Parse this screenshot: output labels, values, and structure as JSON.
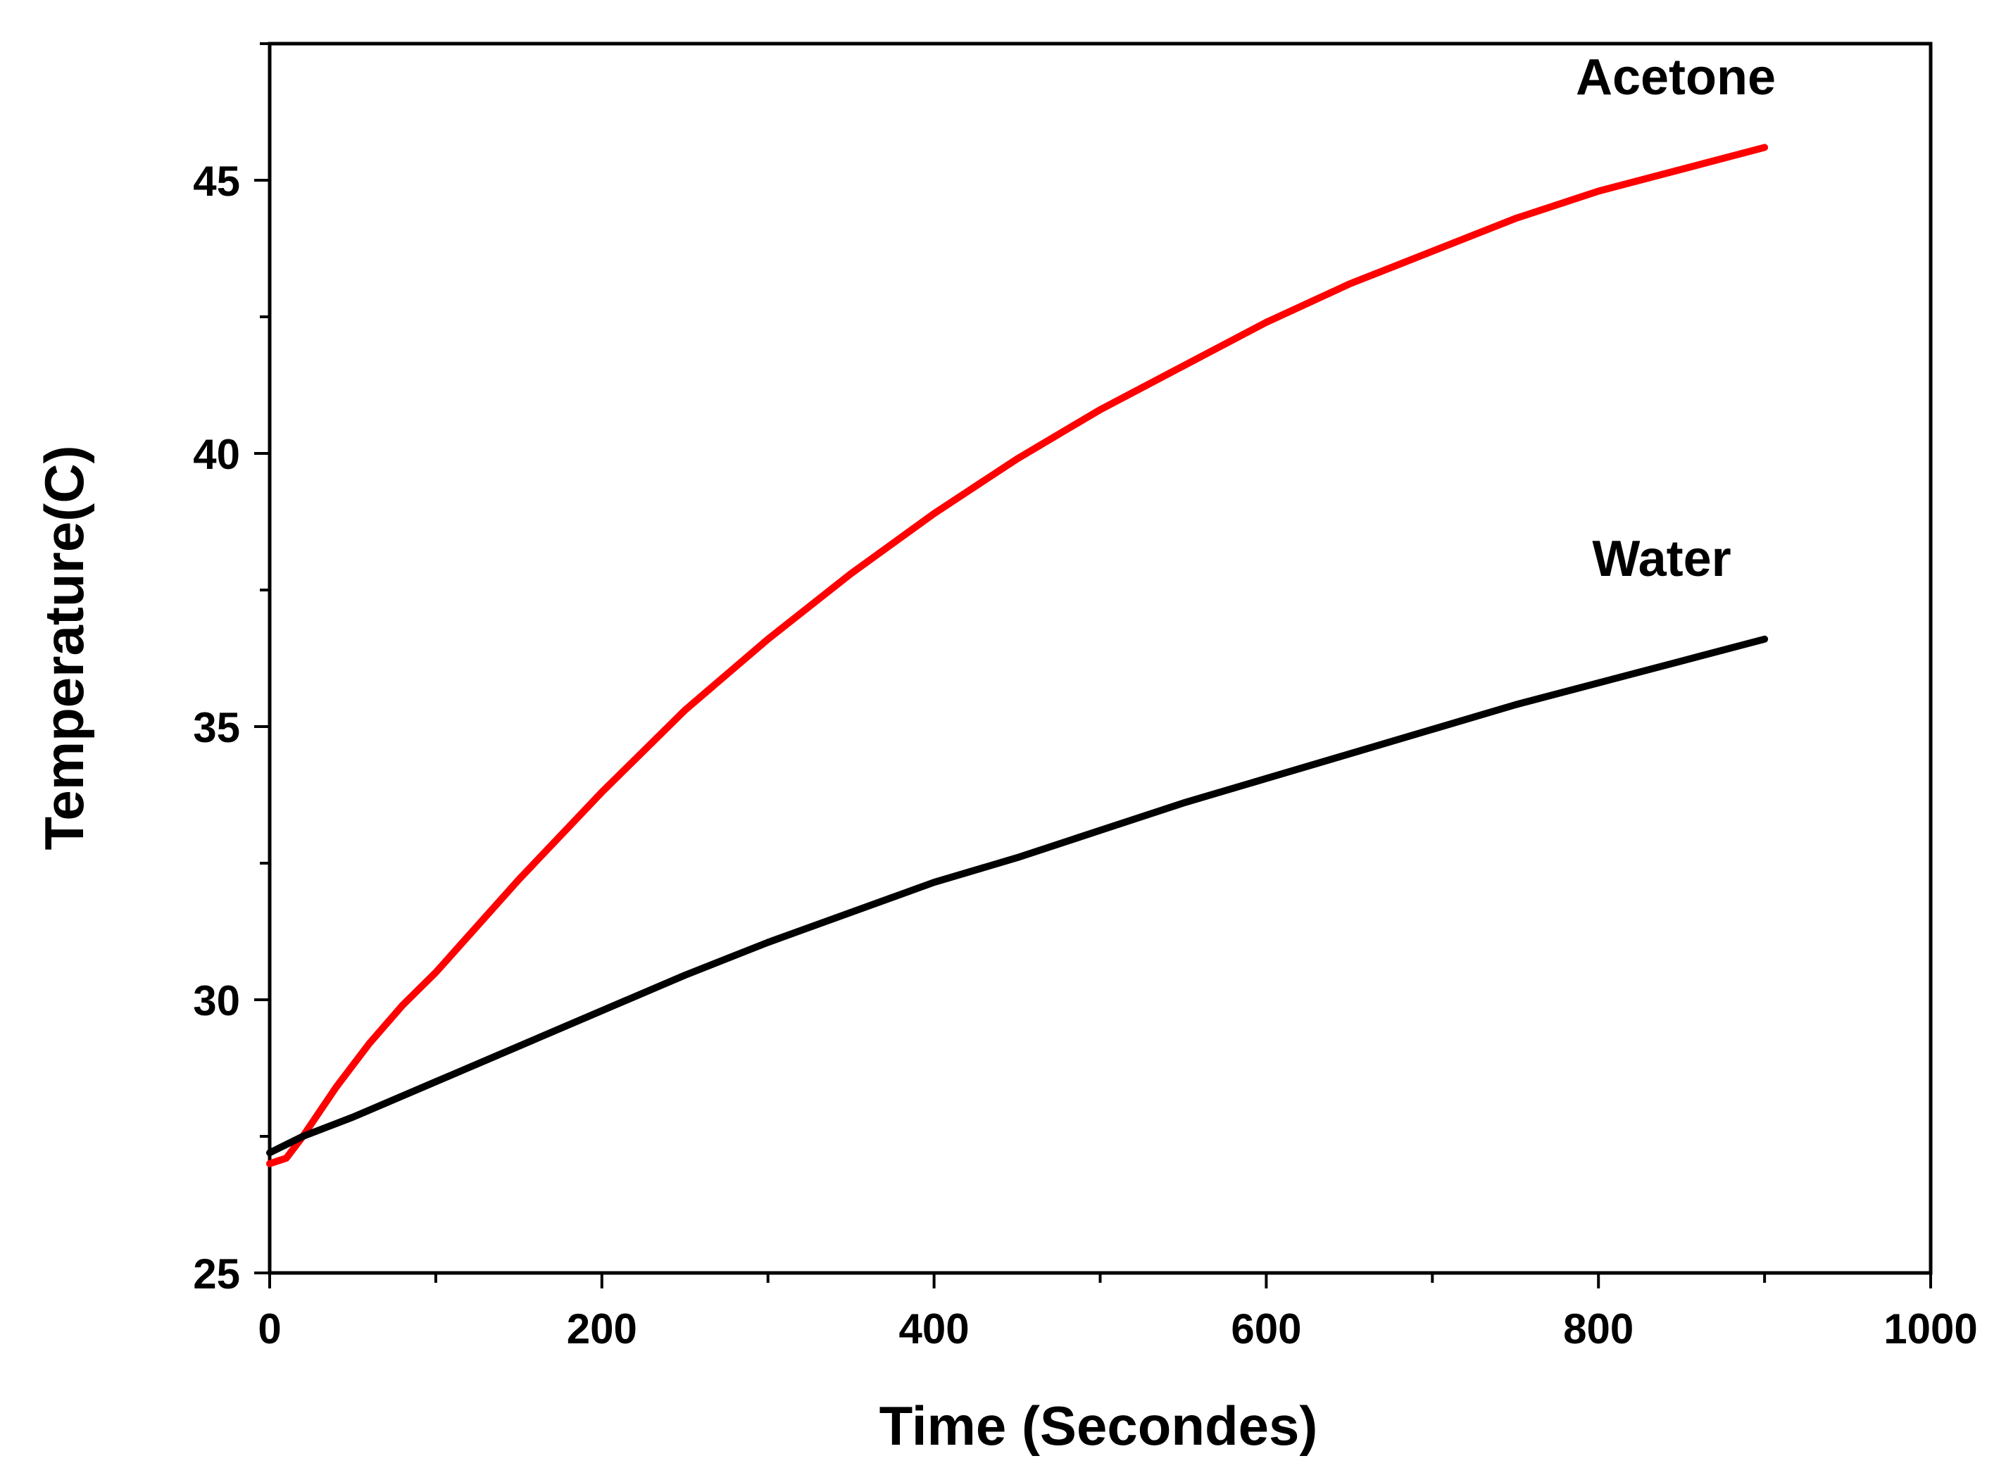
{
  "chart_data": {
    "type": "line",
    "title": "",
    "xlabel": "Time (Secondes)",
    "ylabel": "Temperature(C)",
    "xlim": [
      0,
      1000
    ],
    "ylim": [
      25,
      47.5
    ],
    "x_ticks": [
      0,
      200,
      400,
      600,
      800,
      1000
    ],
    "y_ticks": [
      25,
      30,
      35,
      40,
      45
    ],
    "grid": false,
    "legend": "inline labels",
    "series": [
      {
        "name": "Acetone",
        "color": "#ff0000",
        "x": [
          0,
          10,
          20,
          40,
          60,
          80,
          100,
          150,
          200,
          250,
          300,
          350,
          400,
          450,
          500,
          550,
          600,
          650,
          700,
          750,
          800,
          850,
          900
        ],
        "y": [
          27.0,
          27.1,
          27.5,
          28.4,
          29.2,
          29.9,
          30.5,
          32.2,
          33.8,
          35.3,
          36.6,
          37.8,
          38.9,
          39.9,
          40.8,
          41.6,
          42.4,
          43.1,
          43.7,
          44.3,
          44.8,
          45.2,
          45.6
        ]
      },
      {
        "name": "Water",
        "color": "#000000",
        "x": [
          0,
          10,
          20,
          50,
          100,
          150,
          200,
          250,
          300,
          350,
          400,
          450,
          500,
          550,
          600,
          650,
          700,
          750,
          800,
          850,
          900
        ],
        "y": [
          27.2,
          27.35,
          27.5,
          27.85,
          28.5,
          29.15,
          29.8,
          30.45,
          31.05,
          31.6,
          32.15,
          32.6,
          33.1,
          33.6,
          34.05,
          34.5,
          34.95,
          35.4,
          35.8,
          36.2,
          36.6
        ]
      }
    ]
  }
}
